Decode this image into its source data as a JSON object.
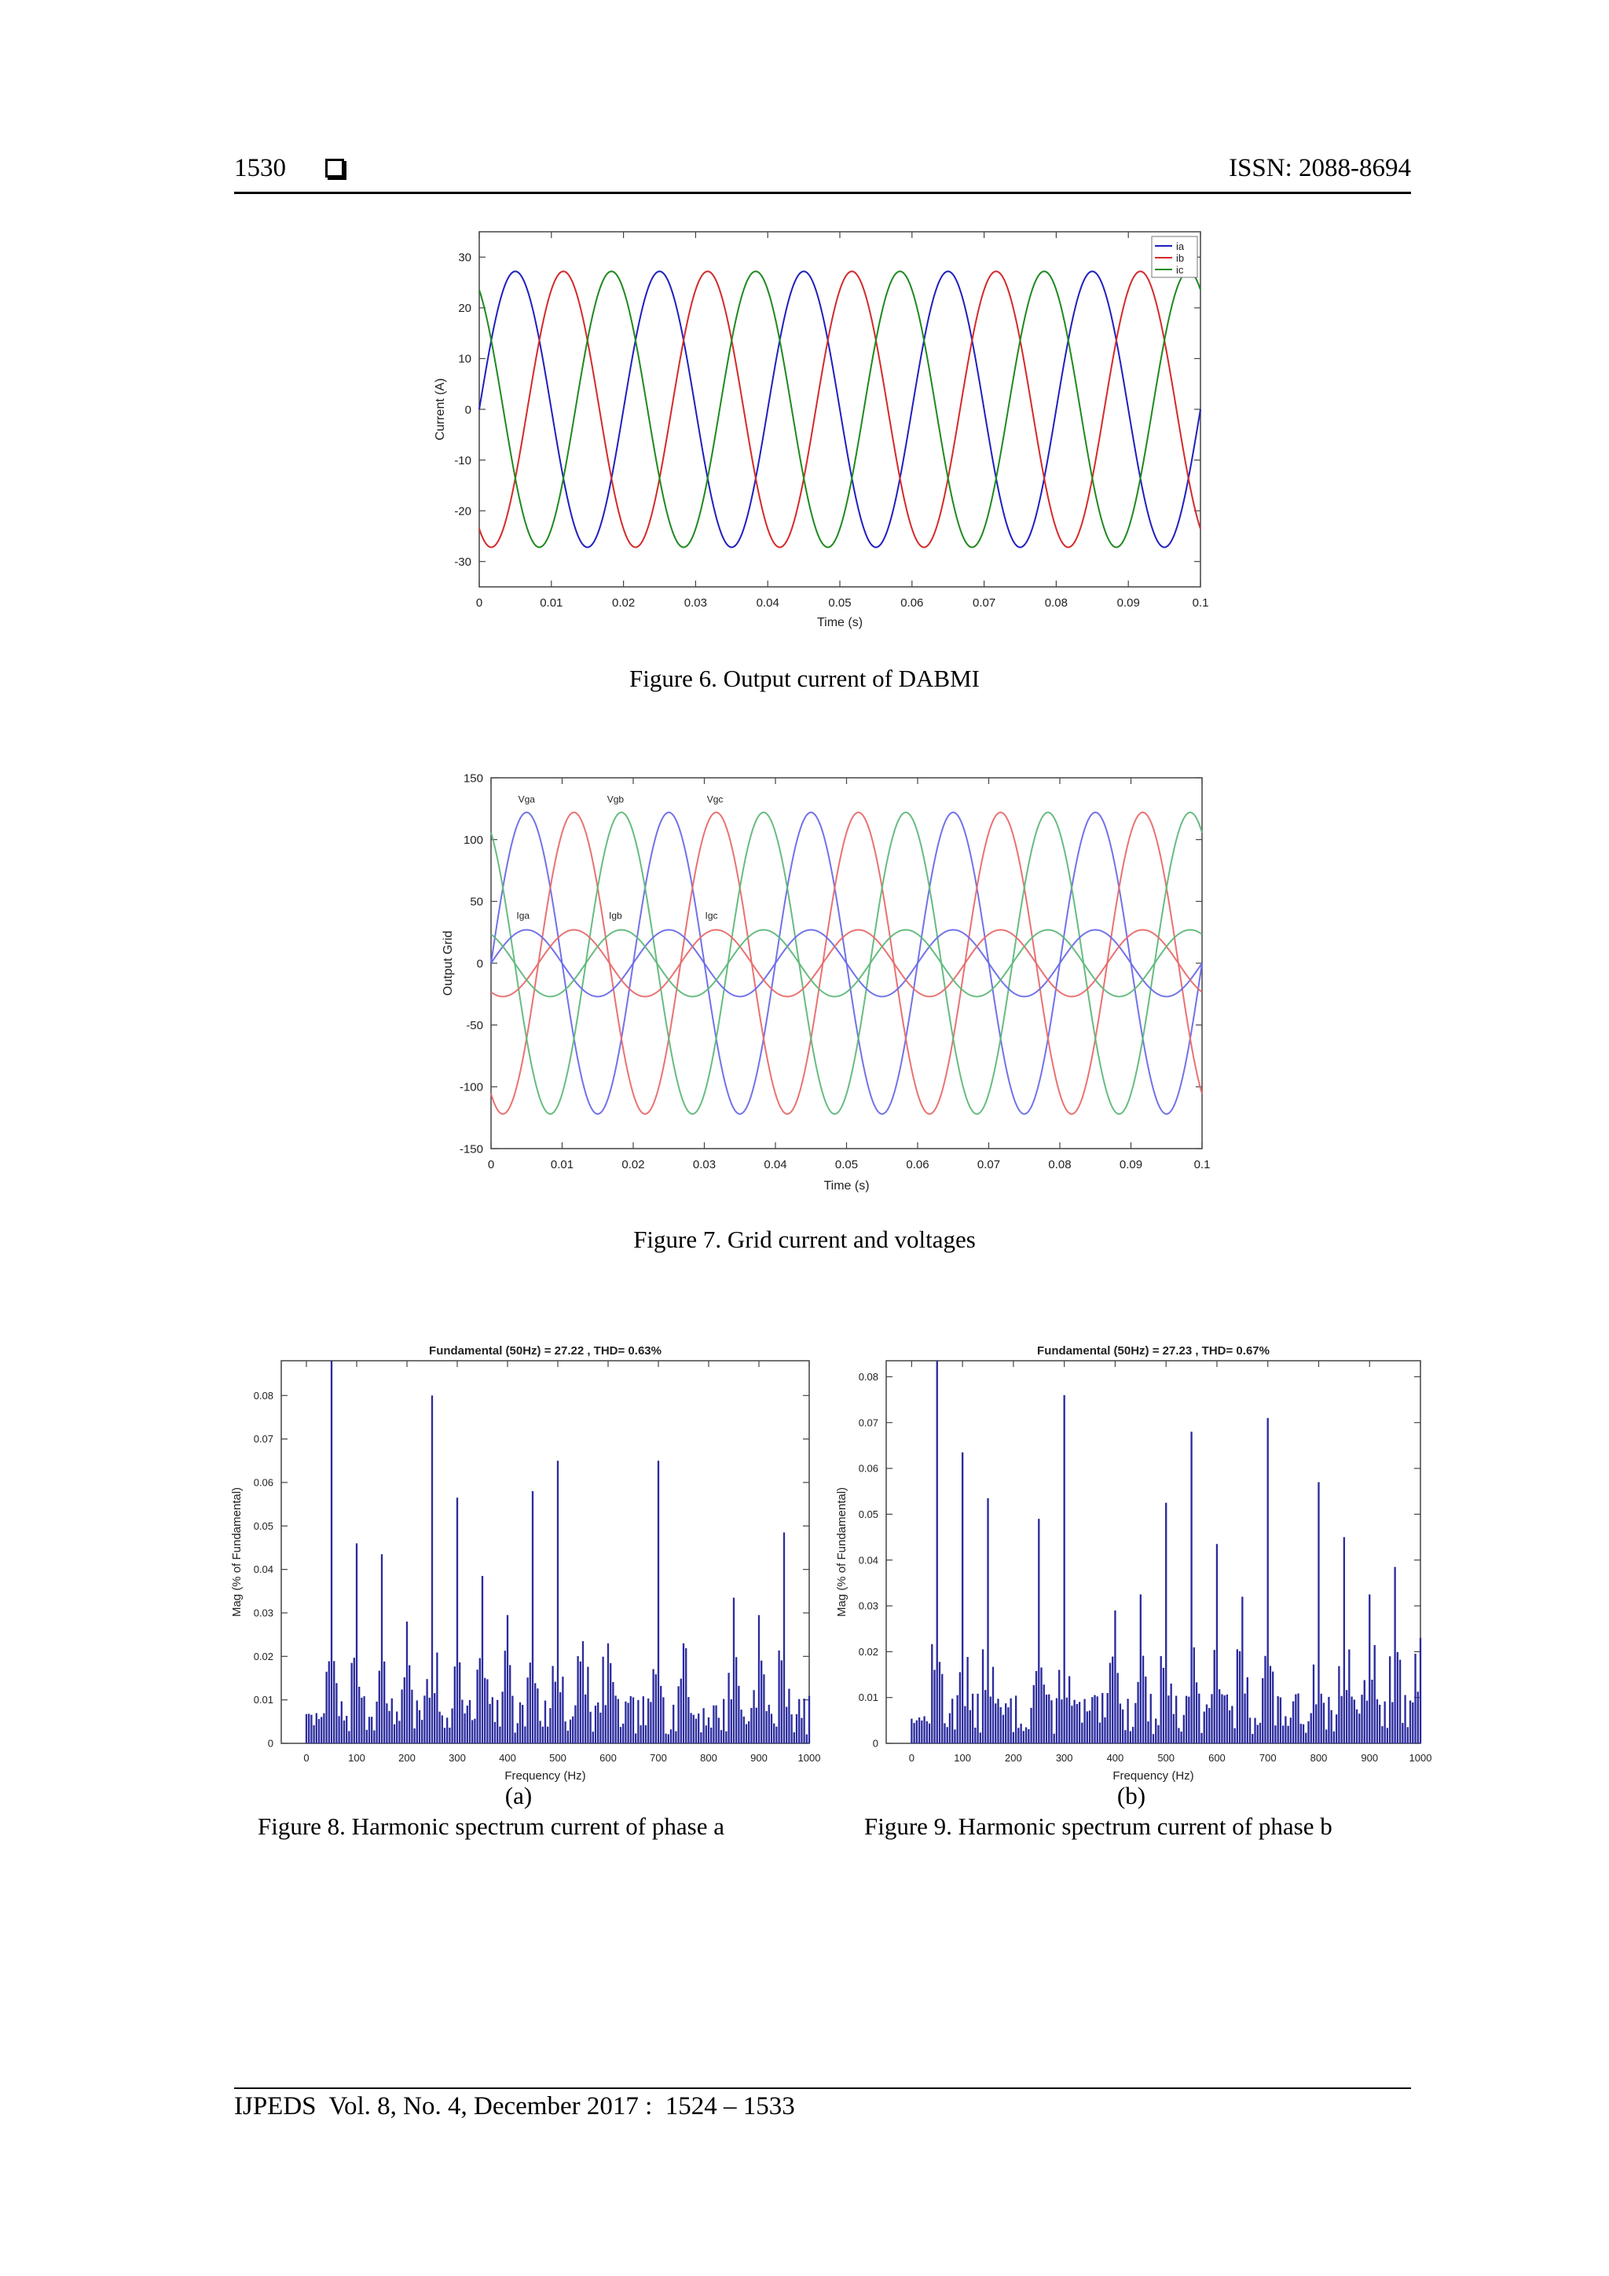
{
  "header": {
    "page_number": "1530",
    "issn": "ISSN: 2088-8694"
  },
  "footer": {
    "citation": "IJPEDS  Vol. 8, No. 4, December 2017 :  1524 – 1533"
  },
  "figures": {
    "fig6": {
      "caption": "Figure 6. Output current of DABMI"
    },
    "fig7": {
      "caption": "Figure 7. Grid current and voltages"
    },
    "fig8": {
      "sub_label": "(a)",
      "caption": "Figure 8.  Harmonic spectrum current of phase a"
    },
    "fig9": {
      "sub_label": "(b)",
      "caption": "Figure 9.  Harmonic spectrum current of phase b"
    }
  },
  "colors": {
    "phase_a": "#1f1fbf",
    "phase_b": "#d42a2a",
    "phase_c": "#1e8a1e",
    "bar": "#2b2b9e"
  },
  "chart_data": [
    {
      "id": "fig6",
      "type": "line",
      "title": "",
      "xlabel": "Time (s)",
      "ylabel": "Current (A)",
      "xlim": [
        0,
        0.1
      ],
      "ylim": [
        -35,
        35
      ],
      "xticks": [
        0,
        0.01,
        0.02,
        0.03,
        0.04,
        0.05,
        0.06,
        0.07,
        0.08,
        0.09,
        0.1
      ],
      "yticks": [
        30,
        20,
        10,
        0,
        -10,
        -20,
        -30
      ],
      "frequency_hz": 50,
      "legend_position": "top-right",
      "series": [
        {
          "name": "ia",
          "amplitude": 27.2,
          "phase_deg": 0,
          "color": "#1f1fbf"
        },
        {
          "name": "ib",
          "amplitude": 27.2,
          "phase_deg": -120,
          "color": "#d42a2a"
        },
        {
          "name": "ic",
          "amplitude": 27.2,
          "phase_deg": 120,
          "color": "#1e8a1e"
        }
      ]
    },
    {
      "id": "fig7",
      "type": "line",
      "title": "",
      "xlabel": "Time (s)",
      "ylabel": "Output Grid",
      "xlim": [
        0,
        0.1
      ],
      "ylim": [
        -150,
        150
      ],
      "xticks": [
        0,
        0.01,
        0.02,
        0.03,
        0.04,
        0.05,
        0.06,
        0.07,
        0.08,
        0.09,
        0.1
      ],
      "yticks": [
        150,
        100,
        50,
        0,
        -50,
        -100,
        -150
      ],
      "frequency_hz": 50,
      "series": [
        {
          "name": "Vga",
          "amplitude": 122,
          "phase_deg": 0,
          "color": "#6a6ae8"
        },
        {
          "name": "Vgb",
          "amplitude": 122,
          "phase_deg": -120,
          "color": "#e86a6a"
        },
        {
          "name": "Vgc",
          "amplitude": 122,
          "phase_deg": 120,
          "color": "#5fb879"
        },
        {
          "name": "Iga",
          "amplitude": 27,
          "phase_deg": 0,
          "color": "#6a6ae8"
        },
        {
          "name": "Igb",
          "amplitude": 27,
          "phase_deg": -120,
          "color": "#e86a6a"
        },
        {
          "name": "Igc",
          "amplitude": 27,
          "phase_deg": 120,
          "color": "#5fb879"
        }
      ],
      "annotations": [
        {
          "text": "Vga",
          "x": 0.005,
          "y": 130
        },
        {
          "text": "Vgb",
          "x": 0.0175,
          "y": 130
        },
        {
          "text": "Vgc",
          "x": 0.0315,
          "y": 130
        },
        {
          "text": "Iga",
          "x": 0.0045,
          "y": 36
        },
        {
          "text": "Igb",
          "x": 0.0175,
          "y": 36
        },
        {
          "text": "Igc",
          "x": 0.031,
          "y": 36
        }
      ]
    },
    {
      "id": "fig8",
      "type": "bar",
      "title": "Fundamental (50Hz) = 27.22 , THD= 0.63%",
      "xlabel": "Frequency (Hz)",
      "ylabel": "Mag (% of Fundamental)",
      "xlim": [
        -50,
        1000
      ],
      "ylim": [
        0,
        0.088
      ],
      "xticks": [
        0,
        100,
        200,
        300,
        400,
        500,
        600,
        700,
        800,
        900,
        1000
      ],
      "yticks": [
        0,
        0.01,
        0.02,
        0.03,
        0.04,
        0.05,
        0.06,
        0.07,
        0.08
      ],
      "bar_width_hz": 5,
      "seed": 7,
      "peaks": [
        {
          "x": 50,
          "y": 0.088
        },
        {
          "x": 100,
          "y": 0.046
        },
        {
          "x": 150,
          "y": 0.0435
        },
        {
          "x": 200,
          "y": 0.028
        },
        {
          "x": 250,
          "y": 0.08
        },
        {
          "x": 300,
          "y": 0.0565
        },
        {
          "x": 350,
          "y": 0.0385
        },
        {
          "x": 400,
          "y": 0.0295
        },
        {
          "x": 450,
          "y": 0.058
        },
        {
          "x": 500,
          "y": 0.065
        },
        {
          "x": 550,
          "y": 0.0235
        },
        {
          "x": 600,
          "y": 0.023
        },
        {
          "x": 700,
          "y": 0.065
        },
        {
          "x": 750,
          "y": 0.023
        },
        {
          "x": 850,
          "y": 0.0335
        },
        {
          "x": 900,
          "y": 0.0295
        },
        {
          "x": 950,
          "y": 0.0485
        }
      ]
    },
    {
      "id": "fig9",
      "type": "bar",
      "title": "Fundamental (50Hz) = 27.23 , THD= 0.67%",
      "xlabel": "Frequency (Hz)",
      "ylabel": "Mag (% of Fundamental)",
      "xlim": [
        -50,
        1000
      ],
      "ylim": [
        0,
        0.0835
      ],
      "xticks": [
        0,
        100,
        200,
        300,
        400,
        500,
        600,
        700,
        800,
        900,
        1000
      ],
      "yticks": [
        0,
        0.01,
        0.02,
        0.03,
        0.04,
        0.05,
        0.06,
        0.07,
        0.08
      ],
      "bar_width_hz": 5,
      "seed": 13,
      "peaks": [
        {
          "x": 50,
          "y": 0.0835
        },
        {
          "x": 100,
          "y": 0.0635
        },
        {
          "x": 150,
          "y": 0.0535
        },
        {
          "x": 250,
          "y": 0.049
        },
        {
          "x": 300,
          "y": 0.076
        },
        {
          "x": 400,
          "y": 0.029
        },
        {
          "x": 450,
          "y": 0.0325
        },
        {
          "x": 500,
          "y": 0.0525
        },
        {
          "x": 550,
          "y": 0.068
        },
        {
          "x": 600,
          "y": 0.0435
        },
        {
          "x": 650,
          "y": 0.032
        },
        {
          "x": 700,
          "y": 0.071
        },
        {
          "x": 800,
          "y": 0.057
        },
        {
          "x": 850,
          "y": 0.045
        },
        {
          "x": 900,
          "y": 0.0325
        },
        {
          "x": 950,
          "y": 0.0385
        },
        {
          "x": 1000,
          "y": 0.023
        }
      ]
    }
  ]
}
